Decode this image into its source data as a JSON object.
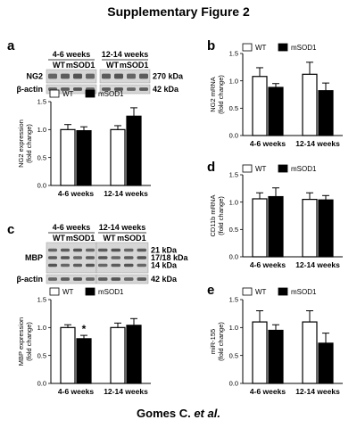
{
  "figure": {
    "title": "Supplementary Figure 2",
    "footer": {
      "name": "Gomes C. ",
      "etal": "et al."
    }
  },
  "colors": {
    "wt": "#ffffff",
    "msod1": "#000000",
    "stroke": "#000000"
  },
  "legend": {
    "wt": "WT",
    "msod1": "mSOD1"
  },
  "blots": {
    "a": {
      "groups": [
        "4-6 weeks",
        "12-14 weeks"
      ],
      "lane_labels": [
        "WT",
        "mSOD1"
      ],
      "rows": [
        {
          "name": "NG2",
          "mw": [
            "270 kDa"
          ]
        },
        {
          "name": "β-actin",
          "mw": [
            "42 kDa"
          ]
        }
      ]
    },
    "c": {
      "groups": [
        "4-6 weeks",
        "12-14 weeks"
      ],
      "lane_labels": [
        "WT",
        "mSOD1"
      ],
      "rows": [
        {
          "name": "MBP",
          "mw": [
            "21 kDa",
            "17/18 kDa",
            "14 kDa"
          ]
        },
        {
          "name": "β-actin",
          "mw": [
            "42 kDa"
          ]
        }
      ]
    }
  },
  "chart_data": [
    {
      "panel": "a",
      "type": "bar",
      "categories": [
        "4-6 weeks",
        "12-14 weeks"
      ],
      "ylabel": [
        "NG2 expression",
        "(fold change)"
      ],
      "ylim": [
        0,
        1.5
      ],
      "yticks": [
        0.0,
        0.5,
        1.0,
        1.5
      ],
      "series": [
        {
          "name": "WT",
          "values": [
            1.0,
            1.0
          ],
          "errors": [
            0.09,
            0.07
          ]
        },
        {
          "name": "mSOD1",
          "values": [
            0.98,
            1.24
          ],
          "errors": [
            0.07,
            0.15
          ]
        }
      ],
      "annotations": []
    },
    {
      "panel": "b",
      "type": "bar",
      "categories": [
        "4-6 weeks",
        "12-14 weeks"
      ],
      "ylabel": [
        "NG2 mRNA",
        "(fold change)"
      ],
      "ylim": [
        0,
        1.5
      ],
      "yticks": [
        0.0,
        0.5,
        1.0,
        1.5
      ],
      "series": [
        {
          "name": "WT",
          "values": [
            1.08,
            1.12
          ],
          "errors": [
            0.16,
            0.22
          ]
        },
        {
          "name": "mSOD1",
          "values": [
            0.88,
            0.82
          ],
          "errors": [
            0.07,
            0.14
          ]
        }
      ],
      "annotations": []
    },
    {
      "panel": "c",
      "type": "bar",
      "categories": [
        "4-6 weeks",
        "12-14 weeks"
      ],
      "ylabel": [
        "MBP expression",
        "(fold change)"
      ],
      "ylim": [
        0,
        1.5
      ],
      "yticks": [
        0.0,
        0.5,
        1.0,
        1.5
      ],
      "series": [
        {
          "name": "WT",
          "values": [
            1.0,
            1.0
          ],
          "errors": [
            0.05,
            0.08
          ]
        },
        {
          "name": "mSOD1",
          "values": [
            0.8,
            1.04
          ],
          "errors": [
            0.06,
            0.12
          ]
        }
      ],
      "annotations": [
        {
          "text": "*",
          "category": 0,
          "series": 1
        }
      ]
    },
    {
      "panel": "d",
      "type": "bar",
      "categories": [
        "4-6 weeks",
        "12-14 weeks"
      ],
      "ylabel": [
        "CD11b mRNA",
        "(fold change)"
      ],
      "ylim": [
        0,
        1.5
      ],
      "yticks": [
        0.0,
        0.5,
        1.0,
        1.5
      ],
      "series": [
        {
          "name": "WT",
          "values": [
            1.06,
            1.05
          ],
          "errors": [
            0.11,
            0.12
          ]
        },
        {
          "name": "mSOD1",
          "values": [
            1.1,
            1.04
          ],
          "errors": [
            0.16,
            0.08
          ]
        }
      ],
      "annotations": []
    },
    {
      "panel": "e",
      "type": "bar",
      "categories": [
        "4-6 weeks",
        "12-14 weeks"
      ],
      "ylabel": [
        "miR-155",
        "(fold change)"
      ],
      "ylim": [
        0,
        1.5
      ],
      "yticks": [
        0.0,
        0.5,
        1.0,
        1.5
      ],
      "series": [
        {
          "name": "WT",
          "values": [
            1.1,
            1.1
          ],
          "errors": [
            0.2,
            0.2
          ]
        },
        {
          "name": "mSOD1",
          "values": [
            0.95,
            0.72
          ],
          "errors": [
            0.1,
            0.18
          ]
        }
      ],
      "annotations": []
    }
  ]
}
